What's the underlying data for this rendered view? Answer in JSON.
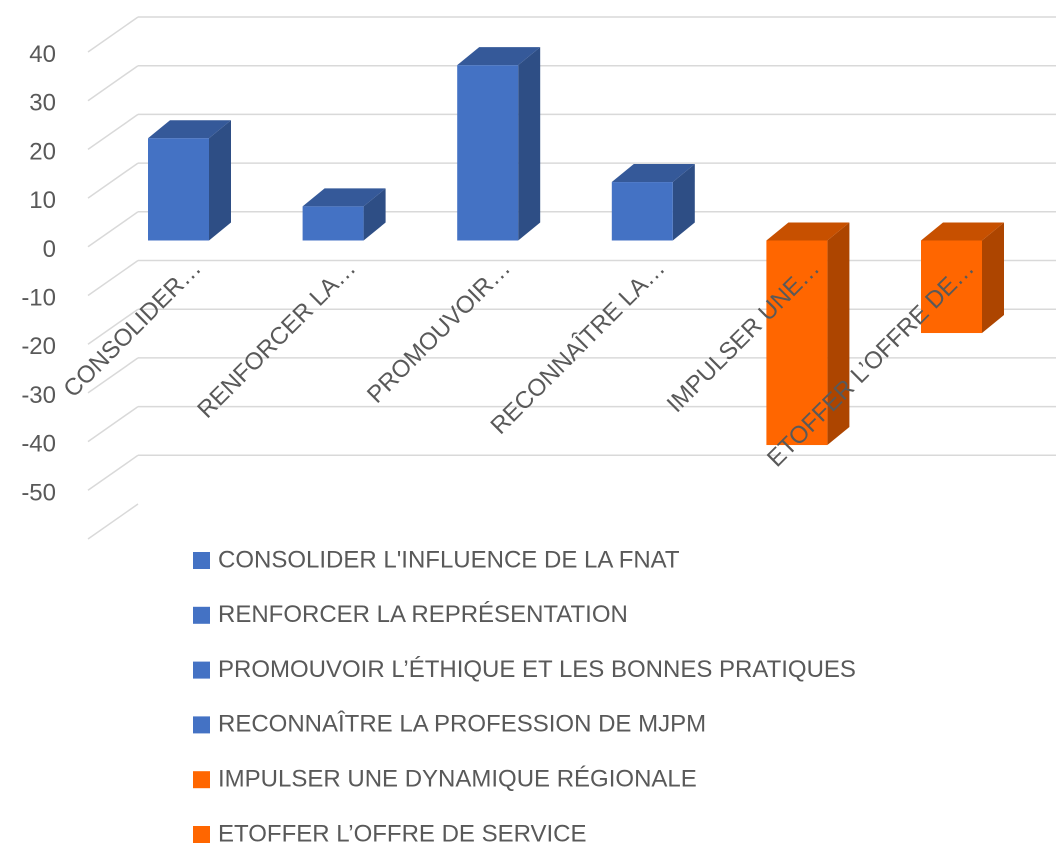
{
  "chart_data": {
    "type": "bar3d",
    "categories": [
      "CONSOLIDER…",
      "RENFORCER LA…",
      "PROMOUVOIR…",
      "RECONNAÎTRE LA…",
      "IMPULSER UNE…",
      "ETOFFER L’OFFRE DE…"
    ],
    "values": [
      21,
      7,
      36,
      12,
      -42,
      -19
    ],
    "colors": [
      "#4472c4",
      "#4472c4",
      "#4472c4",
      "#4472c4",
      "#ff6600",
      "#ff6600"
    ],
    "legend": [
      "CONSOLIDER L'INFLUENCE DE LA FNAT",
      "RENFORCER LA REPRÉSENTATION",
      "PROMOUVOIR L’ÉTHIQUE ET LES BONNES PRATIQUES",
      "RECONNAÎTRE LA PROFESSION DE MJPM",
      "IMPULSER UNE DYNAMIQUE RÉGIONALE",
      "ETOFFER L’OFFRE DE SERVICE"
    ],
    "ylim": [
      -50,
      50
    ],
    "yticks": [
      -50,
      -40,
      -30,
      -20,
      -10,
      0,
      10,
      20,
      30,
      40
    ],
    "grid": true
  }
}
